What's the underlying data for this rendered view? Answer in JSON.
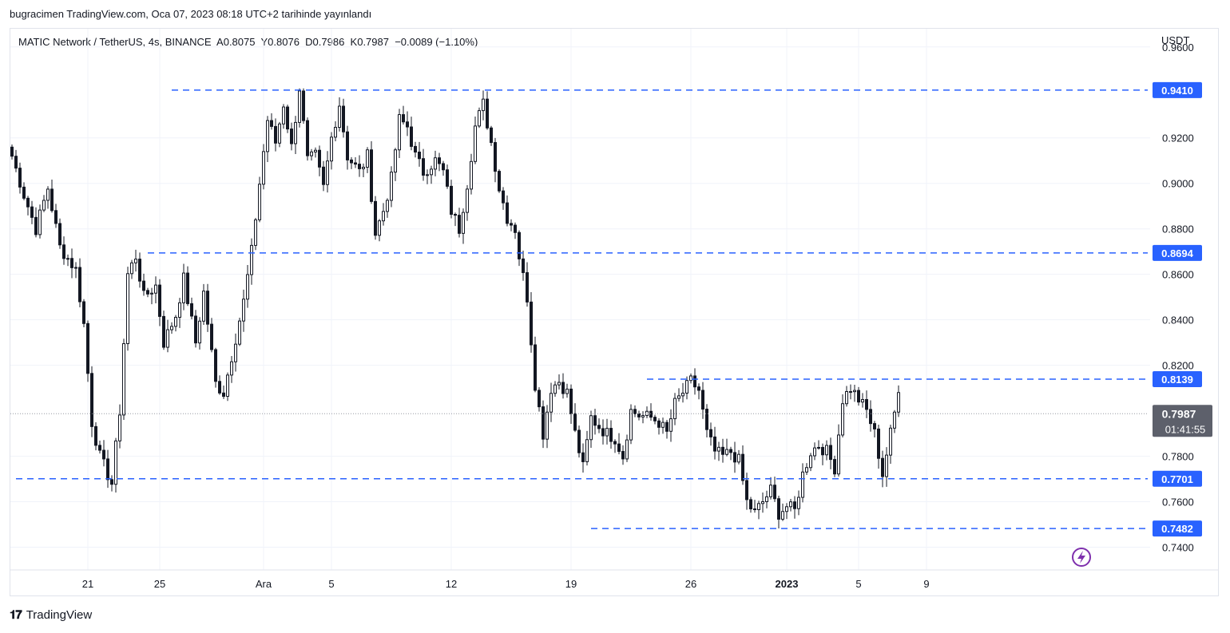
{
  "header": {
    "published": "bugracimen TradingView.com, Oca 07, 2023 08:18 UTC+2 tarihinde yayınlandı"
  },
  "legend": {
    "symbol": "MATIC Network / TetherUS, 4s, BINANCE",
    "open_label": "A",
    "open": "0.8075",
    "high_label": "Y",
    "high": "0.8076",
    "low_label": "D",
    "low": "0.7986",
    "close_label": "K",
    "close": "0.7987",
    "change": "−0.0089 (−1.10%)"
  },
  "footer": {
    "brand": "TradingView"
  },
  "colors": {
    "up": "#131722",
    "down": "#131722",
    "level_line": "#2962ff",
    "level_badge": "#2962ff",
    "price_badge": "#5d606b",
    "accent_icon": "#7e2fad"
  },
  "icons": {
    "bolt": "lightning-bolt-icon",
    "logo": "tradingview-logo-icon"
  },
  "chart_data": {
    "type": "candlestick",
    "currency": "USDT",
    "ylim": [
      0.73,
      0.968
    ],
    "y_ticks": [
      "0.9600",
      "0.9200",
      "0.9000",
      "0.8800",
      "0.8600",
      "0.8400",
      "0.8200",
      "0.7800",
      "0.7600",
      "0.7400"
    ],
    "x_ticks": [
      {
        "label": "21",
        "bar": 19
      },
      {
        "label": "25",
        "bar": 37
      },
      {
        "label": "Ara",
        "bar": 63
      },
      {
        "label": "5",
        "bar": 80
      },
      {
        "label": "12",
        "bar": 110
      },
      {
        "label": "19",
        "bar": 140
      },
      {
        "label": "26",
        "bar": 170
      },
      {
        "label": "2023",
        "bar": 194,
        "bold": true
      },
      {
        "label": "5",
        "bar": 212
      },
      {
        "label": "9",
        "bar": 229
      }
    ],
    "levels": [
      {
        "price": 0.941,
        "label": "0.9410",
        "from_bar": 40
      },
      {
        "price": 0.8694,
        "label": "0.8694",
        "from_bar": 34
      },
      {
        "price": 0.8139,
        "label": "0.8139",
        "from_bar": 159
      },
      {
        "price": 0.7701,
        "label": "0.7701",
        "from_bar": 1
      },
      {
        "price": 0.7482,
        "label": "0.7482",
        "from_bar": 145
      }
    ],
    "last_price": {
      "price": 0.7987,
      "label": "0.7987",
      "countdown": "01:41:55"
    },
    "anchors": [
      [
        0,
        0.912
      ],
      [
        3,
        0.895
      ],
      [
        6,
        0.88
      ],
      [
        9,
        0.898
      ],
      [
        12,
        0.872
      ],
      [
        16,
        0.862
      ],
      [
        18,
        0.838
      ],
      [
        20,
        0.795
      ],
      [
        22,
        0.78
      ],
      [
        25,
        0.768
      ],
      [
        27,
        0.8
      ],
      [
        29,
        0.86
      ],
      [
        31,
        0.868
      ],
      [
        33,
        0.85
      ],
      [
        36,
        0.855
      ],
      [
        38,
        0.83
      ],
      [
        41,
        0.842
      ],
      [
        43,
        0.858
      ],
      [
        46,
        0.83
      ],
      [
        48,
        0.852
      ],
      [
        51,
        0.812
      ],
      [
        53,
        0.808
      ],
      [
        56,
        0.832
      ],
      [
        58,
        0.848
      ],
      [
        60,
        0.87
      ],
      [
        62,
        0.9
      ],
      [
        64,
        0.928
      ],
      [
        66,
        0.918
      ],
      [
        68,
        0.935
      ],
      [
        70,
        0.916
      ],
      [
        72,
        0.942
      ],
      [
        74,
        0.91
      ],
      [
        76,
        0.912
      ],
      [
        78,
        0.898
      ],
      [
        80,
        0.92
      ],
      [
        82,
        0.935
      ],
      [
        84,
        0.912
      ],
      [
        87,
        0.905
      ],
      [
        89,
        0.912
      ],
      [
        91,
        0.878
      ],
      [
        93,
        0.888
      ],
      [
        95,
        0.902
      ],
      [
        97,
        0.928
      ],
      [
        99,
        0.925
      ],
      [
        101,
        0.912
      ],
      [
        103,
        0.905
      ],
      [
        106,
        0.91
      ],
      [
        108,
        0.905
      ],
      [
        110,
        0.888
      ],
      [
        112,
        0.88
      ],
      [
        114,
        0.9
      ],
      [
        116,
        0.925
      ],
      [
        118,
        0.935
      ],
      [
        120,
        0.918
      ],
      [
        122,
        0.898
      ],
      [
        124,
        0.885
      ],
      [
        126,
        0.88
      ],
      [
        127,
        0.868
      ],
      [
        129,
        0.85
      ],
      [
        131,
        0.812
      ],
      [
        133,
        0.79
      ],
      [
        135,
        0.81
      ],
      [
        137,
        0.813
      ],
      [
        139,
        0.808
      ],
      [
        141,
        0.79
      ],
      [
        143,
        0.775
      ],
      [
        145,
        0.797
      ],
      [
        147,
        0.793
      ],
      [
        149,
        0.79
      ],
      [
        151,
        0.788
      ],
      [
        153,
        0.78
      ],
      [
        155,
        0.8
      ],
      [
        157,
        0.798
      ],
      [
        160,
        0.797
      ],
      [
        162,
        0.795
      ],
      [
        164,
        0.79
      ],
      [
        166,
        0.803
      ],
      [
        168,
        0.808
      ],
      [
        170,
        0.813
      ],
      [
        172,
        0.809
      ],
      [
        174,
        0.79
      ],
      [
        176,
        0.782
      ],
      [
        178,
        0.78
      ],
      [
        180,
        0.782
      ],
      [
        182,
        0.778
      ],
      [
        184,
        0.76
      ],
      [
        186,
        0.755
      ],
      [
        188,
        0.76
      ],
      [
        190,
        0.765
      ],
      [
        192,
        0.755
      ],
      [
        194,
        0.758
      ],
      [
        196,
        0.756
      ],
      [
        198,
        0.772
      ],
      [
        200,
        0.782
      ],
      [
        202,
        0.785
      ],
      [
        204,
        0.782
      ],
      [
        206,
        0.775
      ],
      [
        208,
        0.805
      ],
      [
        210,
        0.81
      ],
      [
        212,
        0.805
      ],
      [
        214,
        0.8
      ],
      [
        216,
        0.79
      ],
      [
        218,
        0.772
      ],
      [
        220,
        0.79
      ],
      [
        222,
        0.808
      ]
    ]
  }
}
